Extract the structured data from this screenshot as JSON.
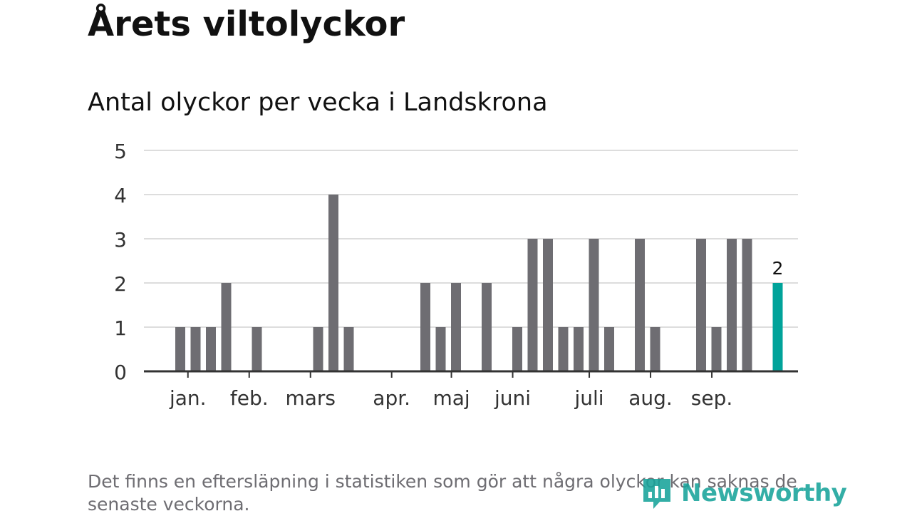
{
  "title": "Årets viltolyckor",
  "subtitle": "Antal olyckor per vecka i Landskrona",
  "footnote": "Det finns en eftersläpning i statistiken som gör att några olyckor kan saknas de senaste veckorna.",
  "brand": {
    "name": "Newsworthy",
    "color": "#18a39a"
  },
  "colors": {
    "bar": "#6e6d72",
    "highlight": "#00a39a",
    "grid": "#dddddd",
    "axis": "#333333"
  },
  "chart_data": {
    "type": "bar",
    "title": "Antal olyckor per vecka i Landskrona",
    "xlabel": "",
    "ylabel": "",
    "ylim": [
      0,
      5
    ],
    "yticks": [
      0,
      1,
      2,
      3,
      4,
      5
    ],
    "grid": true,
    "weeks": [
      1,
      2,
      3,
      4,
      5,
      6,
      7,
      8,
      9,
      10,
      11,
      12,
      13,
      14,
      15,
      16,
      17,
      18,
      19,
      20,
      21,
      22,
      23,
      24,
      25,
      26,
      27,
      28,
      29,
      30,
      31,
      32,
      33,
      34,
      35,
      36,
      37,
      38,
      39,
      40
    ],
    "values": [
      1,
      1,
      1,
      2,
      0,
      1,
      0,
      0,
      0,
      1,
      4,
      1,
      0,
      0,
      0,
      0,
      2,
      1,
      2,
      0,
      2,
      0,
      1,
      3,
      3,
      1,
      1,
      3,
      1,
      0,
      3,
      1,
      0,
      0,
      3,
      1,
      3,
      3,
      0,
      2
    ],
    "highlight_index": 39,
    "highlight_label": "2",
    "month_labels": [
      {
        "label": "jan.",
        "week": 1.5
      },
      {
        "label": "feb.",
        "week": 5.5
      },
      {
        "label": "mars",
        "week": 9.5
      },
      {
        "label": "apr.",
        "week": 14.8
      },
      {
        "label": "maj",
        "week": 18.7
      },
      {
        "label": "juni",
        "week": 22.7
      },
      {
        "label": "juli",
        "week": 27.7
      },
      {
        "label": "aug.",
        "week": 31.7
      },
      {
        "label": "sep.",
        "week": 35.7
      }
    ]
  }
}
